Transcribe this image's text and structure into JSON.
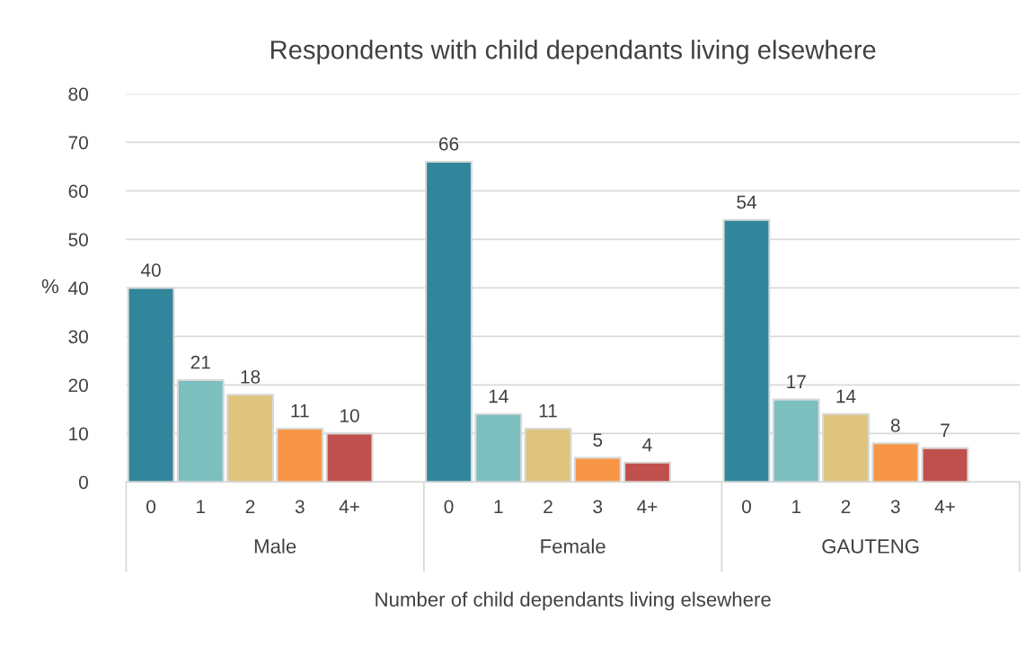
{
  "chart_data": {
    "type": "bar",
    "title": "Respondents with child dependants living elsewhere",
    "xlabel": "Number of child dependants living elsewhere",
    "ylabel": "%",
    "categories": [
      "0",
      "1",
      "2",
      "3",
      "4+",
      "0",
      "1",
      "2",
      "3",
      "4+",
      "0",
      "1",
      "2",
      "3",
      "4+"
    ],
    "values": [
      40,
      21,
      18,
      11,
      10,
      66,
      14,
      11,
      5,
      4,
      54,
      17,
      14,
      8,
      7
    ],
    "colors": [
      "#31869b",
      "#7bbfbf",
      "#dfc47e",
      "#f79646",
      "#c0504d",
      "#31869b",
      "#7bbfbf",
      "#dfc47e",
      "#f79646",
      "#c0504d",
      "#31869b",
      "#7bbfbf",
      "#dfc47e",
      "#f79646",
      "#c0504d"
    ],
    "annotations": [
      "Male",
      "Female",
      "GAUTENG"
    ],
    "ylim": [
      0,
      80
    ],
    "yticks": [
      0,
      10,
      20,
      30,
      40,
      50,
      60,
      70,
      80
    ],
    "grid": "y",
    "data_labels": true
  }
}
